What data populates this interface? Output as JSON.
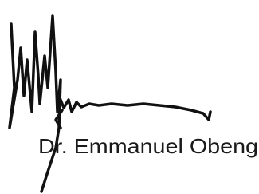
{
  "signature": {
    "name": "Dr. Emmanuel Obeng"
  }
}
